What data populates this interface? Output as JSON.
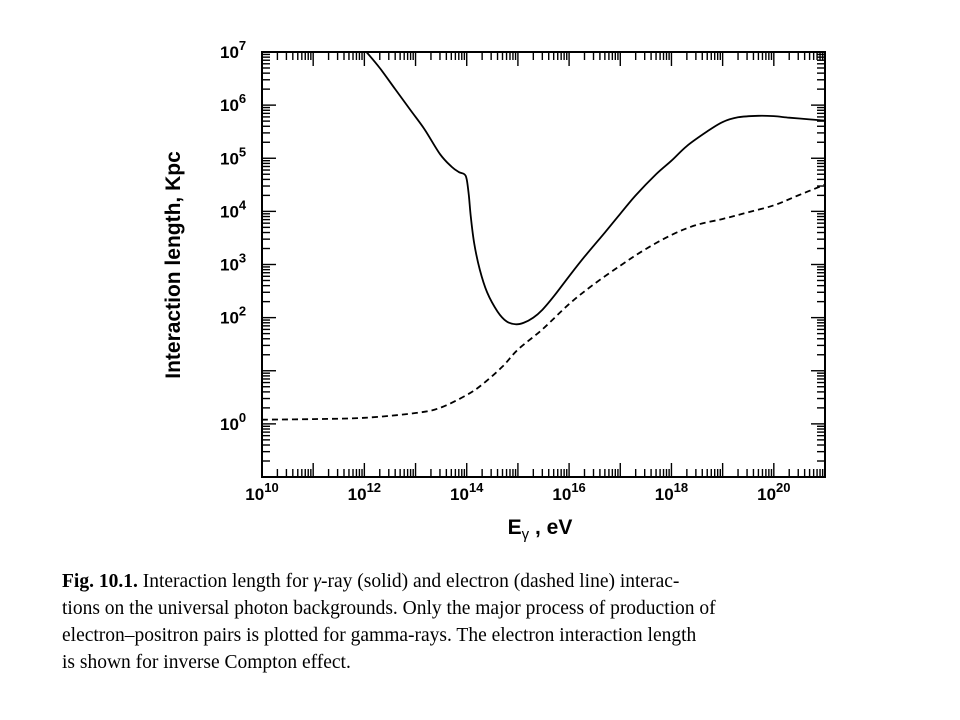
{
  "chart_data": {
    "type": "line",
    "xlabel_main": "E",
    "xlabel_sub": "γ",
    "xlabel_unit": " , eV",
    "ylabel": "Interaction length, Kpc",
    "x_scale": "log",
    "y_scale": "log",
    "xlim": [
      10000000000.0,
      1e+21
    ],
    "ylim": [
      0.1,
      10000000.0
    ],
    "x_ticks": [
      {
        "base": "10",
        "exp": "10",
        "value": 10000000000.0
      },
      {
        "base": "10",
        "exp": "12",
        "value": 1000000000000.0
      },
      {
        "base": "10",
        "exp": "14",
        "value": 100000000000000.0
      },
      {
        "base": "10",
        "exp": "16",
        "value": 1e+16
      },
      {
        "base": "10",
        "exp": "18",
        "value": 1e+18
      },
      {
        "base": "10",
        "exp": "20",
        "value": 1e+20
      }
    ],
    "y_ticks": [
      {
        "base": "10",
        "exp": "0",
        "value": 1
      },
      {
        "base": "10",
        "exp": "2",
        "value": 100.0
      },
      {
        "base": "10",
        "exp": "3",
        "value": 1000.0
      },
      {
        "base": "10",
        "exp": "4",
        "value": 10000.0
      },
      {
        "base": "10",
        "exp": "5",
        "value": 100000.0
      },
      {
        "base": "10",
        "exp": "6",
        "value": 1000000.0
      },
      {
        "base": "10",
        "exp": "7",
        "value": 10000000.0
      }
    ],
    "series": [
      {
        "style": "solid",
        "x": [
          1100000000000.0,
          2000000000000.0,
          4000000000000.0,
          8000000000000.0,
          15000000000000.0,
          30000000000000.0,
          50000000000000.0,
          70000000000000.0,
          90000000000000.0,
          100000000000000.0,
          110000000000000.0,
          120000000000000.0,
          140000000000000.0,
          180000000000000.0,
          250000000000000.0,
          400000000000000.0,
          600000000000000.0,
          900000000000000.0,
          1300000000000000.0,
          2000000000000000.0,
          3000000000000000.0,
          5000000000000000.0,
          1e+16,
          2e+16,
          5e+16,
          1e+17,
          2e+17,
          5e+17,
          1e+18,
          2e+18,
          5e+18,
          1e+19,
          2e+19,
          5e+19,
          1e+20,
          2e+20,
          5e+20,
          1e+21
        ],
        "y": [
          10000000.0,
          5000000.0,
          2000000.0,
          800000.0,
          350000.0,
          120000.0,
          70000.0,
          55000.0,
          50000.0,
          40000.0,
          20000.0,
          8000.0,
          2500.0,
          800,
          300,
          130,
          85,
          75,
          80,
          100,
          140,
          250,
          600,
          1400,
          4000,
          9000,
          20000.0,
          50000.0,
          90000.0,
          170000.0,
          320000.0,
          480000.0,
          590000.0,
          630000.0,
          620000.0,
          580000.0,
          540000.0,
          510000.0
        ]
      },
      {
        "style": "dashed",
        "x": [
          10000000000.0,
          100000000000.0,
          1000000000000.0,
          10000000000000.0,
          30000000000000.0,
          100000000000000.0,
          200000000000000.0,
          500000000000000.0,
          1000000000000000.0,
          3000000000000000.0,
          1e+16,
          3e+16,
          1e+17,
          3e+17,
          1e+18,
          3e+18,
          1e+19,
          3e+19,
          1e+20,
          3e+20,
          1e+21
        ],
        "y": [
          1.2,
          1.23,
          1.3,
          1.6,
          2,
          3.5,
          5.5,
          12,
          25,
          60,
          180,
          420,
          950,
          1900,
          3600,
          5500,
          7200,
          9500,
          13000.0,
          20000.0,
          32000.0
        ]
      }
    ]
  },
  "caption": {
    "label": "Fig. 10.1.",
    "line1_a": " Interaction length for ",
    "gamma": "γ",
    "line1_b": "-ray (solid) and electron (dashed line) interac-",
    "line2": "tions on the universal photon backgrounds. Only the major process of production of",
    "line3": "electron–positron pairs is plotted for gamma-rays. The electron interaction length",
    "line4": "is shown for inverse Compton effect."
  }
}
